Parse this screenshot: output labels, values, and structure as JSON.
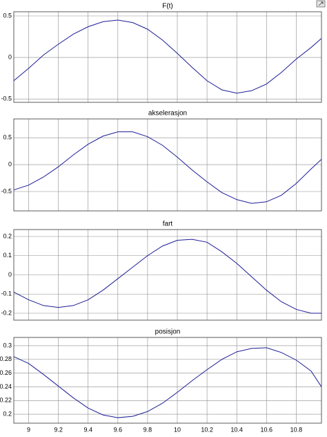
{
  "chart_data": [
    {
      "type": "line",
      "title": "F(t)",
      "grid": true,
      "x": [
        8.9,
        9.0,
        9.1,
        9.2,
        9.3,
        9.4,
        9.5,
        9.6,
        9.7,
        9.8,
        9.9,
        10.0,
        10.1,
        10.2,
        10.3,
        10.4,
        10.5,
        10.6,
        10.7,
        10.8,
        10.9,
        10.97
      ],
      "series": [
        {
          "color": "#1c1c96",
          "values": [
            -0.28,
            -0.13,
            0.03,
            0.16,
            0.28,
            0.37,
            0.43,
            0.45,
            0.42,
            0.34,
            0.21,
            0.05,
            -0.12,
            -0.28,
            -0.39,
            -0.43,
            -0.4,
            -0.32,
            -0.18,
            -0.02,
            0.12,
            0.23
          ]
        }
      ],
      "xlim": [
        8.9,
        10.97
      ],
      "xticks": [
        9,
        9.2,
        9.4,
        9.6,
        9.8,
        10,
        10.2,
        10.4,
        10.6,
        10.8
      ],
      "ylim": [
        -0.54,
        0.55
      ],
      "yticks": [
        0.5,
        0,
        -0.5
      ]
    },
    {
      "type": "line",
      "title": "akselerasjon",
      "grid": true,
      "x": [
        8.9,
        9.0,
        9.1,
        9.2,
        9.3,
        9.4,
        9.5,
        9.6,
        9.7,
        9.8,
        9.9,
        10.0,
        10.1,
        10.2,
        10.3,
        10.4,
        10.5,
        10.6,
        10.7,
        10.8,
        10.9,
        10.97
      ],
      "series": [
        {
          "color": "#1c1c96",
          "values": [
            -0.47,
            -0.38,
            -0.23,
            -0.04,
            0.18,
            0.38,
            0.53,
            0.61,
            0.61,
            0.52,
            0.36,
            0.14,
            -0.1,
            -0.32,
            -0.52,
            -0.65,
            -0.72,
            -0.69,
            -0.57,
            -0.35,
            -0.08,
            0.1
          ]
        }
      ],
      "xlim": [
        8.9,
        10.97
      ],
      "xticks": [
        9,
        9.2,
        9.4,
        9.6,
        9.8,
        10,
        10.2,
        10.4,
        10.6,
        10.8
      ],
      "ylim": [
        -0.86,
        0.85
      ],
      "yticks": [
        0.5,
        0,
        -0.5
      ]
    },
    {
      "type": "line",
      "title": "fart",
      "grid": true,
      "x": [
        8.9,
        9.0,
        9.1,
        9.2,
        9.3,
        9.4,
        9.5,
        9.6,
        9.7,
        9.8,
        9.9,
        10.0,
        10.1,
        10.2,
        10.3,
        10.4,
        10.5,
        10.6,
        10.7,
        10.8,
        10.9,
        10.97
      ],
      "series": [
        {
          "color": "#1c1c96",
          "values": [
            -0.09,
            -0.13,
            -0.16,
            -0.17,
            -0.16,
            -0.13,
            -0.08,
            -0.02,
            0.04,
            0.1,
            0.15,
            0.18,
            0.185,
            0.17,
            0.12,
            0.06,
            -0.01,
            -0.08,
            -0.14,
            -0.18,
            -0.2,
            -0.2
          ]
        }
      ],
      "xlim": [
        8.9,
        10.97
      ],
      "xticks": [
        9,
        9.2,
        9.4,
        9.6,
        9.8,
        10,
        10.2,
        10.4,
        10.6,
        10.8
      ],
      "ylim": [
        -0.236,
        0.236
      ],
      "yticks": [
        0.2,
        0.1,
        0,
        -0.1,
        -0.2
      ]
    },
    {
      "type": "line",
      "title": "posisjon",
      "grid": true,
      "x": [
        8.9,
        9.0,
        9.1,
        9.2,
        9.3,
        9.4,
        9.5,
        9.6,
        9.7,
        9.8,
        9.9,
        10.0,
        10.1,
        10.2,
        10.3,
        10.4,
        10.5,
        10.6,
        10.7,
        10.8,
        10.9,
        10.97
      ],
      "series": [
        {
          "color": "#1c1c96",
          "values": [
            0.284,
            0.274,
            0.258,
            0.241,
            0.224,
            0.209,
            0.199,
            0.195,
            0.197,
            0.204,
            0.216,
            0.232,
            0.249,
            0.265,
            0.28,
            0.291,
            0.296,
            0.297,
            0.29,
            0.279,
            0.263,
            0.24
          ]
        }
      ],
      "xlim": [
        8.9,
        10.97
      ],
      "xticks": [
        9,
        9.2,
        9.4,
        9.6,
        9.8,
        10,
        10.2,
        10.4,
        10.6,
        10.8
      ],
      "ylim": [
        0.187,
        0.312
      ],
      "yticks": [
        0.3,
        0.28,
        0.26,
        0.24,
        0.22,
        0.2
      ]
    }
  ]
}
